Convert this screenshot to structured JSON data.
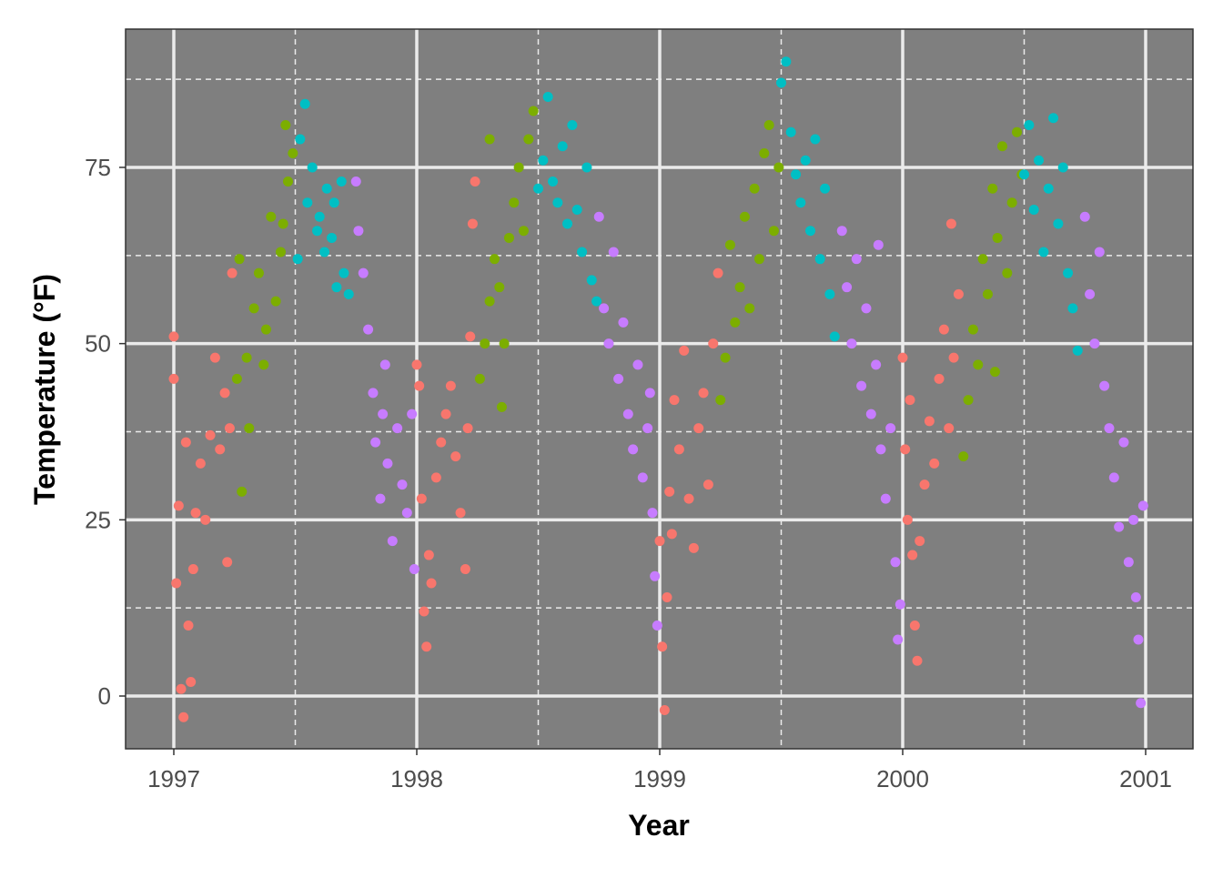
{
  "chart_data": {
    "type": "scatter",
    "title": "",
    "xlabel": "Year",
    "ylabel": "Temperature (°F)",
    "xlim": [
      1996.8,
      2001.2
    ],
    "ylim": [
      -7,
      94
    ],
    "x_ticks": [
      1997,
      1998,
      1999,
      2000,
      2001
    ],
    "x_tick_labels": [
      "1997",
      "1998",
      "1999",
      "2000",
      "2001"
    ],
    "y_ticks": [
      0,
      25,
      50,
      75
    ],
    "y_tick_labels": [
      "0",
      "25",
      "50",
      "75"
    ],
    "x_minor": [
      1997.5,
      1998.5,
      1999.5,
      2000.5
    ],
    "y_minor": [
      12.5,
      37.5,
      62.5,
      87.5
    ],
    "grid": true,
    "legend": "none",
    "panel_color": "#7f7f7f",
    "series": [
      {
        "color": "#F8766D",
        "points": [
          [
            1997.0,
            45
          ],
          [
            1997.0,
            51
          ],
          [
            1997.01,
            16
          ],
          [
            1997.02,
            27
          ],
          [
            1997.03,
            1
          ],
          [
            1997.04,
            -3
          ],
          [
            1997.05,
            36
          ],
          [
            1997.06,
            10
          ],
          [
            1997.07,
            2
          ],
          [
            1997.08,
            18
          ],
          [
            1997.09,
            26
          ],
          [
            1997.11,
            33
          ],
          [
            1997.13,
            25
          ],
          [
            1997.15,
            37
          ],
          [
            1997.17,
            48
          ],
          [
            1997.19,
            35
          ],
          [
            1997.21,
            43
          ],
          [
            1997.22,
            19
          ],
          [
            1997.23,
            38
          ],
          [
            1997.24,
            60
          ],
          [
            1998.0,
            47
          ],
          [
            1998.01,
            44
          ],
          [
            1998.02,
            28
          ],
          [
            1998.03,
            12
          ],
          [
            1998.04,
            7
          ],
          [
            1998.05,
            20
          ],
          [
            1998.06,
            16
          ],
          [
            1998.08,
            31
          ],
          [
            1998.1,
            36
          ],
          [
            1998.12,
            40
          ],
          [
            1998.14,
            44
          ],
          [
            1998.16,
            34
          ],
          [
            1998.18,
            26
          ],
          [
            1998.2,
            18
          ],
          [
            1998.21,
            38
          ],
          [
            1998.22,
            51
          ],
          [
            1998.23,
            67
          ],
          [
            1998.24,
            73
          ],
          [
            1999.0,
            22
          ],
          [
            1999.01,
            7
          ],
          [
            1999.02,
            -2
          ],
          [
            1999.03,
            14
          ],
          [
            1999.04,
            29
          ],
          [
            1999.05,
            23
          ],
          [
            1999.06,
            42
          ],
          [
            1999.08,
            35
          ],
          [
            1999.1,
            49
          ],
          [
            1999.12,
            28
          ],
          [
            1999.14,
            21
          ],
          [
            1999.16,
            38
          ],
          [
            1999.18,
            43
          ],
          [
            1999.2,
            30
          ],
          [
            1999.22,
            50
          ],
          [
            1999.24,
            60
          ],
          [
            2000.0,
            48
          ],
          [
            2000.01,
            35
          ],
          [
            2000.02,
            25
          ],
          [
            2000.03,
            42
          ],
          [
            2000.04,
            20
          ],
          [
            2000.05,
            10
          ],
          [
            2000.06,
            5
          ],
          [
            2000.07,
            22
          ],
          [
            2000.09,
            30
          ],
          [
            2000.11,
            39
          ],
          [
            2000.13,
            33
          ],
          [
            2000.15,
            45
          ],
          [
            2000.17,
            52
          ],
          [
            2000.19,
            38
          ],
          [
            2000.2,
            67
          ],
          [
            2000.21,
            48
          ],
          [
            2000.23,
            57
          ]
        ]
      },
      {
        "color": "#7CAE00",
        "points": [
          [
            1997.26,
            45
          ],
          [
            1997.27,
            62
          ],
          [
            1997.28,
            29
          ],
          [
            1997.3,
            48
          ],
          [
            1997.31,
            38
          ],
          [
            1997.33,
            55
          ],
          [
            1997.35,
            60
          ],
          [
            1997.37,
            47
          ],
          [
            1997.38,
            52
          ],
          [
            1997.4,
            68
          ],
          [
            1997.42,
            56
          ],
          [
            1997.44,
            63
          ],
          [
            1997.45,
            67
          ],
          [
            1997.46,
            81
          ],
          [
            1997.47,
            73
          ],
          [
            1997.49,
            77
          ],
          [
            1998.26,
            45
          ],
          [
            1998.28,
            50
          ],
          [
            1998.3,
            56
          ],
          [
            1998.3,
            79
          ],
          [
            1998.32,
            62
          ],
          [
            1998.34,
            58
          ],
          [
            1998.35,
            41
          ],
          [
            1998.36,
            50
          ],
          [
            1998.38,
            65
          ],
          [
            1998.4,
            70
          ],
          [
            1998.42,
            75
          ],
          [
            1998.44,
            66
          ],
          [
            1998.46,
            79
          ],
          [
            1998.48,
            83
          ],
          [
            1999.25,
            42
          ],
          [
            1999.27,
            48
          ],
          [
            1999.29,
            64
          ],
          [
            1999.31,
            53
          ],
          [
            1999.33,
            58
          ],
          [
            1999.35,
            68
          ],
          [
            1999.37,
            55
          ],
          [
            1999.39,
            72
          ],
          [
            1999.41,
            62
          ],
          [
            1999.43,
            77
          ],
          [
            1999.45,
            81
          ],
          [
            1999.47,
            66
          ],
          [
            1999.49,
            75
          ],
          [
            2000.25,
            34
          ],
          [
            2000.27,
            42
          ],
          [
            2000.29,
            52
          ],
          [
            2000.31,
            47
          ],
          [
            2000.33,
            62
          ],
          [
            2000.35,
            57
          ],
          [
            2000.37,
            72
          ],
          [
            2000.38,
            46
          ],
          [
            2000.39,
            65
          ],
          [
            2000.41,
            78
          ],
          [
            2000.43,
            60
          ],
          [
            2000.45,
            70
          ],
          [
            2000.47,
            80
          ],
          [
            2000.49,
            74
          ]
        ]
      },
      {
        "color": "#00BFC4",
        "points": [
          [
            1997.51,
            62
          ],
          [
            1997.52,
            79
          ],
          [
            1997.54,
            84
          ],
          [
            1997.55,
            70
          ],
          [
            1997.57,
            75
          ],
          [
            1997.59,
            66
          ],
          [
            1997.6,
            68
          ],
          [
            1997.62,
            63
          ],
          [
            1997.63,
            72
          ],
          [
            1997.65,
            65
          ],
          [
            1997.66,
            70
          ],
          [
            1997.67,
            58
          ],
          [
            1997.69,
            73
          ],
          [
            1997.7,
            60
          ],
          [
            1997.72,
            57
          ],
          [
            1998.5,
            72
          ],
          [
            1998.52,
            76
          ],
          [
            1998.54,
            85
          ],
          [
            1998.56,
            73
          ],
          [
            1998.58,
            70
          ],
          [
            1998.6,
            78
          ],
          [
            1998.62,
            67
          ],
          [
            1998.64,
            81
          ],
          [
            1998.66,
            69
          ],
          [
            1998.68,
            63
          ],
          [
            1998.7,
            75
          ],
          [
            1998.72,
            59
          ],
          [
            1998.74,
            56
          ],
          [
            1999.5,
            87
          ],
          [
            1999.52,
            90
          ],
          [
            1999.54,
            80
          ],
          [
            1999.56,
            74
          ],
          [
            1999.58,
            70
          ],
          [
            1999.6,
            76
          ],
          [
            1999.62,
            66
          ],
          [
            1999.64,
            79
          ],
          [
            1999.66,
            62
          ],
          [
            1999.68,
            72
          ],
          [
            1999.7,
            57
          ],
          [
            1999.72,
            51
          ],
          [
            2000.5,
            74
          ],
          [
            2000.52,
            81
          ],
          [
            2000.54,
            69
          ],
          [
            2000.56,
            76
          ],
          [
            2000.58,
            63
          ],
          [
            2000.6,
            72
          ],
          [
            2000.62,
            82
          ],
          [
            2000.64,
            67
          ],
          [
            2000.66,
            75
          ],
          [
            2000.68,
            60
          ],
          [
            2000.7,
            55
          ],
          [
            2000.72,
            49
          ]
        ]
      },
      {
        "color": "#C77CFF",
        "points": [
          [
            1997.75,
            73
          ],
          [
            1997.76,
            66
          ],
          [
            1997.78,
            60
          ],
          [
            1997.8,
            52
          ],
          [
            1997.82,
            43
          ],
          [
            1997.83,
            36
          ],
          [
            1997.85,
            28
          ],
          [
            1997.86,
            40
          ],
          [
            1997.87,
            47
          ],
          [
            1997.88,
            33
          ],
          [
            1997.9,
            22
          ],
          [
            1997.92,
            38
          ],
          [
            1997.94,
            30
          ],
          [
            1997.96,
            26
          ],
          [
            1997.98,
            40
          ],
          [
            1997.99,
            18
          ],
          [
            1998.75,
            68
          ],
          [
            1998.77,
            55
          ],
          [
            1998.79,
            50
          ],
          [
            1998.81,
            63
          ],
          [
            1998.83,
            45
          ],
          [
            1998.85,
            53
          ],
          [
            1998.87,
            40
          ],
          [
            1998.89,
            35
          ],
          [
            1998.91,
            47
          ],
          [
            1998.93,
            31
          ],
          [
            1998.95,
            38
          ],
          [
            1998.96,
            43
          ],
          [
            1998.97,
            26
          ],
          [
            1998.98,
            17
          ],
          [
            1998.99,
            10
          ],
          [
            1999.75,
            66
          ],
          [
            1999.77,
            58
          ],
          [
            1999.79,
            50
          ],
          [
            1999.81,
            62
          ],
          [
            1999.83,
            44
          ],
          [
            1999.85,
            55
          ],
          [
            1999.87,
            40
          ],
          [
            1999.89,
            47
          ],
          [
            1999.9,
            64
          ],
          [
            1999.91,
            35
          ],
          [
            1999.93,
            28
          ],
          [
            1999.95,
            38
          ],
          [
            1999.97,
            19
          ],
          [
            1999.98,
            8
          ],
          [
            1999.99,
            13
          ],
          [
            2000.75,
            68
          ],
          [
            2000.77,
            57
          ],
          [
            2000.79,
            50
          ],
          [
            2000.81,
            63
          ],
          [
            2000.83,
            44
          ],
          [
            2000.85,
            38
          ],
          [
            2000.87,
            31
          ],
          [
            2000.89,
            24
          ],
          [
            2000.91,
            36
          ],
          [
            2000.93,
            19
          ],
          [
            2000.95,
            25
          ],
          [
            2000.96,
            14
          ],
          [
            2000.97,
            8
          ],
          [
            2000.98,
            -1
          ],
          [
            2000.99,
            27
          ]
        ]
      }
    ]
  }
}
